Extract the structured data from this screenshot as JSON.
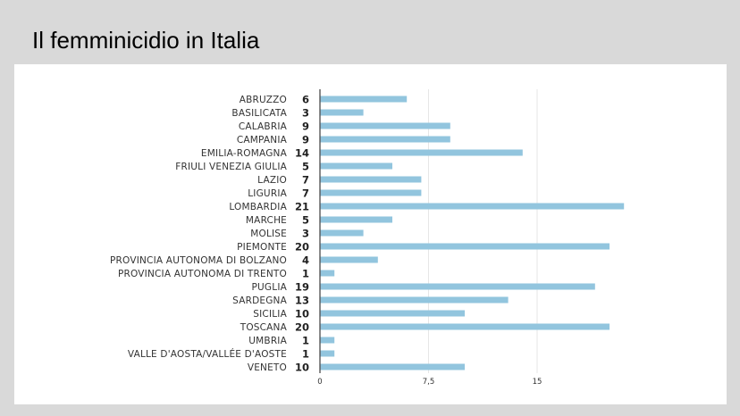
{
  "slide": {
    "title": "Il femminicidio in Italia"
  },
  "chart_data": {
    "type": "bar",
    "orientation": "horizontal",
    "title": "",
    "xlabel": "",
    "ylabel": "",
    "categories": [
      "ABRUZZO",
      "BASILICATA",
      "CALABRIA",
      "CAMPANIA",
      "EMILIA-ROMAGNA",
      "FRIULI VENEZIA GIULIA",
      "LAZIO",
      "LIGURIA",
      "LOMBARDIA",
      "MARCHE",
      "MOLISE",
      "PIEMONTE",
      "PROVINCIA AUTONOMA DI BOLZANO",
      "PROVINCIA AUTONOMA DI TRENTO",
      "PUGLIA",
      "SARDEGNA",
      "SICILIA",
      "TOSCANA",
      "UMBRIA",
      "VALLE D'AOSTA/VALLÉE D'AOSTE",
      "VENETO"
    ],
    "values": [
      6,
      3,
      9,
      9,
      14,
      5,
      7,
      7,
      21,
      5,
      3,
      20,
      4,
      1,
      19,
      13,
      10,
      20,
      1,
      1,
      10
    ],
    "x_ticks": [
      "0",
      "7,5",
      "15"
    ],
    "tick_values": [
      0,
      7.5,
      15
    ],
    "xlim": [
      0,
      22.5
    ],
    "grid": "vertical",
    "legend": "none",
    "bar_color": "#92c5de",
    "grid_color": "#e6e6e6",
    "axis_color": "#3b3b3b"
  }
}
